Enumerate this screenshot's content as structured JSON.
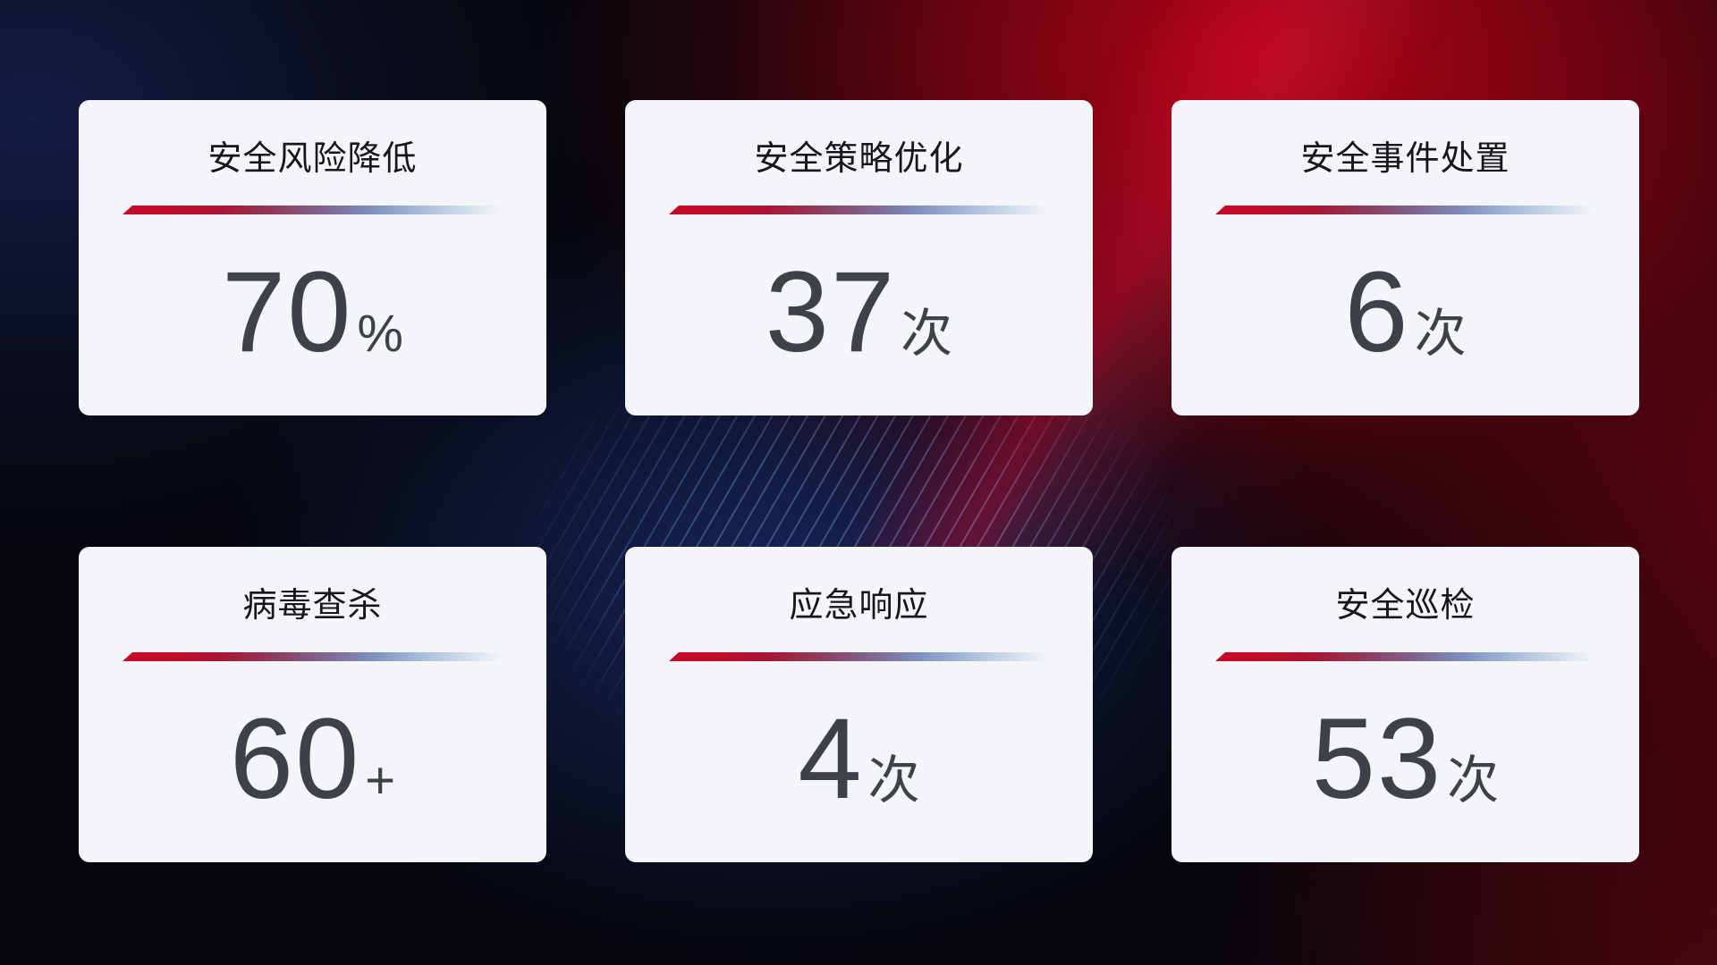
{
  "cards": [
    {
      "title": "安全风险降低",
      "value": "70",
      "unit": "%"
    },
    {
      "title": "安全策略优化",
      "value": "37",
      "unit": "次"
    },
    {
      "title": "安全事件处置",
      "value": "6",
      "unit": "次"
    },
    {
      "title": "病毒查杀",
      "value": "60",
      "unit": "+"
    },
    {
      "title": "应急响应",
      "value": "4",
      "unit": "次"
    },
    {
      "title": "安全巡检",
      "value": "53",
      "unit": "次"
    }
  ],
  "colors": {
    "card_background": "#f3f5f9",
    "title_text": "#16171b",
    "value_text": "#3e4147",
    "divider_red": "#c20b2a",
    "divider_blue": "#a6bad9",
    "background_navy": "#101b3d",
    "background_red": "#b60414",
    "background_base": "#05060c",
    "streak_blue": "#7da5eb"
  }
}
